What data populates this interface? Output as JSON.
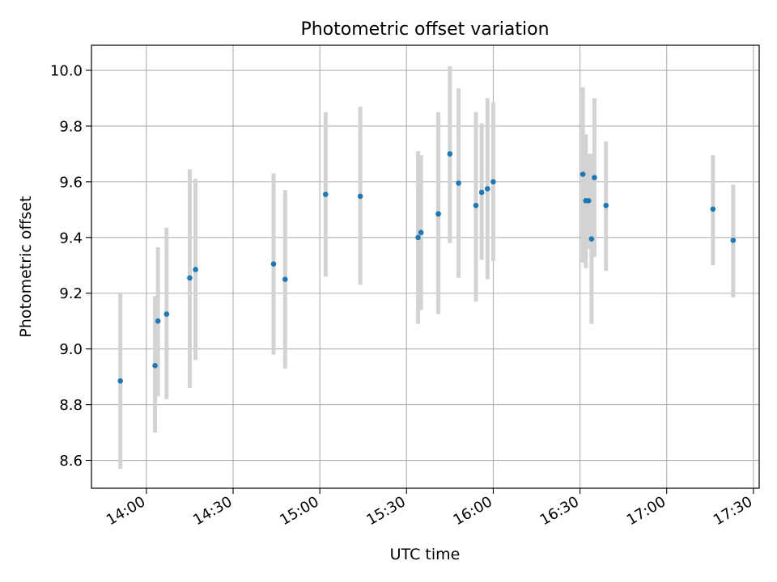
{
  "chart_data": {
    "type": "scatter",
    "title": "Photometric offset variation",
    "xlabel": "UTC time",
    "ylabel": "Photometric offset",
    "x_axis_type": "time",
    "xlim": [
      "13:41",
      "17:32"
    ],
    "ylim": [
      8.5,
      10.09
    ],
    "xticks": [
      "14:00",
      "14:30",
      "15:00",
      "15:30",
      "16:00",
      "16:30",
      "17:00",
      "17:30"
    ],
    "yticks": [
      "8.6",
      "8.8",
      "9.0",
      "9.2",
      "9.4",
      "9.6",
      "9.8",
      "10.0"
    ],
    "grid": true,
    "legend": "none",
    "colors": {
      "point": "#1f77b4",
      "errorbar": "#d3d3d3",
      "grid": "#b0b0b0"
    },
    "series": [
      {
        "points": [
          {
            "x": "13:51",
            "y": 8.885,
            "err_low": 8.57,
            "err_high": 9.2
          },
          {
            "x": "14:03",
            "y": 8.94,
            "err_low": 8.7,
            "err_high": 9.19
          },
          {
            "x": "14:04",
            "y": 9.1,
            "err_low": 8.83,
            "err_high": 9.365
          },
          {
            "x": "14:07",
            "y": 9.125,
            "err_low": 8.82,
            "err_high": 9.435
          },
          {
            "x": "14:15",
            "y": 9.255,
            "err_low": 8.86,
            "err_high": 9.645
          },
          {
            "x": "14:17",
            "y": 9.285,
            "err_low": 8.96,
            "err_high": 9.61
          },
          {
            "x": "14:44",
            "y": 9.305,
            "err_low": 8.98,
            "err_high": 9.63
          },
          {
            "x": "14:48",
            "y": 9.25,
            "err_low": 8.93,
            "err_high": 9.57
          },
          {
            "x": "15:02",
            "y": 9.555,
            "err_low": 9.26,
            "err_high": 9.85
          },
          {
            "x": "15:14",
            "y": 9.548,
            "err_low": 9.23,
            "err_high": 9.87
          },
          {
            "x": "15:34",
            "y": 9.4,
            "err_low": 9.09,
            "err_high": 9.71
          },
          {
            "x": "15:35",
            "y": 9.418,
            "err_low": 9.14,
            "err_high": 9.695
          },
          {
            "x": "15:41",
            "y": 9.485,
            "err_low": 9.125,
            "err_high": 9.85
          },
          {
            "x": "15:41",
            "y": 9.485,
            "err_low": 9.14,
            "err_high": 9.835
          },
          {
            "x": "15:45",
            "y": 9.7,
            "err_low": 9.38,
            "err_high": 10.015
          },
          {
            "x": "15:48",
            "y": 9.595,
            "err_low": 9.255,
            "err_high": 9.935
          },
          {
            "x": "15:54",
            "y": 9.515,
            "err_low": 9.17,
            "err_high": 9.85
          },
          {
            "x": "15:56",
            "y": 9.562,
            "err_low": 9.32,
            "err_high": 9.81
          },
          {
            "x": "15:58",
            "y": 9.575,
            "err_low": 9.25,
            "err_high": 9.9
          },
          {
            "x": "16:00",
            "y": 9.6,
            "err_low": 9.315,
            "err_high": 9.885
          },
          {
            "x": "16:31",
            "y": 9.627,
            "err_low": 9.31,
            "err_high": 9.94
          },
          {
            "x": "16:32",
            "y": 9.532,
            "err_low": 9.29,
            "err_high": 9.77
          },
          {
            "x": "16:33",
            "y": 9.532,
            "err_low": 9.36,
            "err_high": 9.7
          },
          {
            "x": "16:34",
            "y": 9.395,
            "err_low": 9.09,
            "err_high": 9.7
          },
          {
            "x": "16:35",
            "y": 9.615,
            "err_low": 9.33,
            "err_high": 9.9
          },
          {
            "x": "16:39",
            "y": 9.515,
            "err_low": 9.28,
            "err_high": 9.745
          },
          {
            "x": "17:16",
            "y": 9.502,
            "err_low": 9.3,
            "err_high": 9.695
          },
          {
            "x": "17:23",
            "y": 9.39,
            "err_low": 9.185,
            "err_high": 9.59
          }
        ]
      }
    ]
  }
}
